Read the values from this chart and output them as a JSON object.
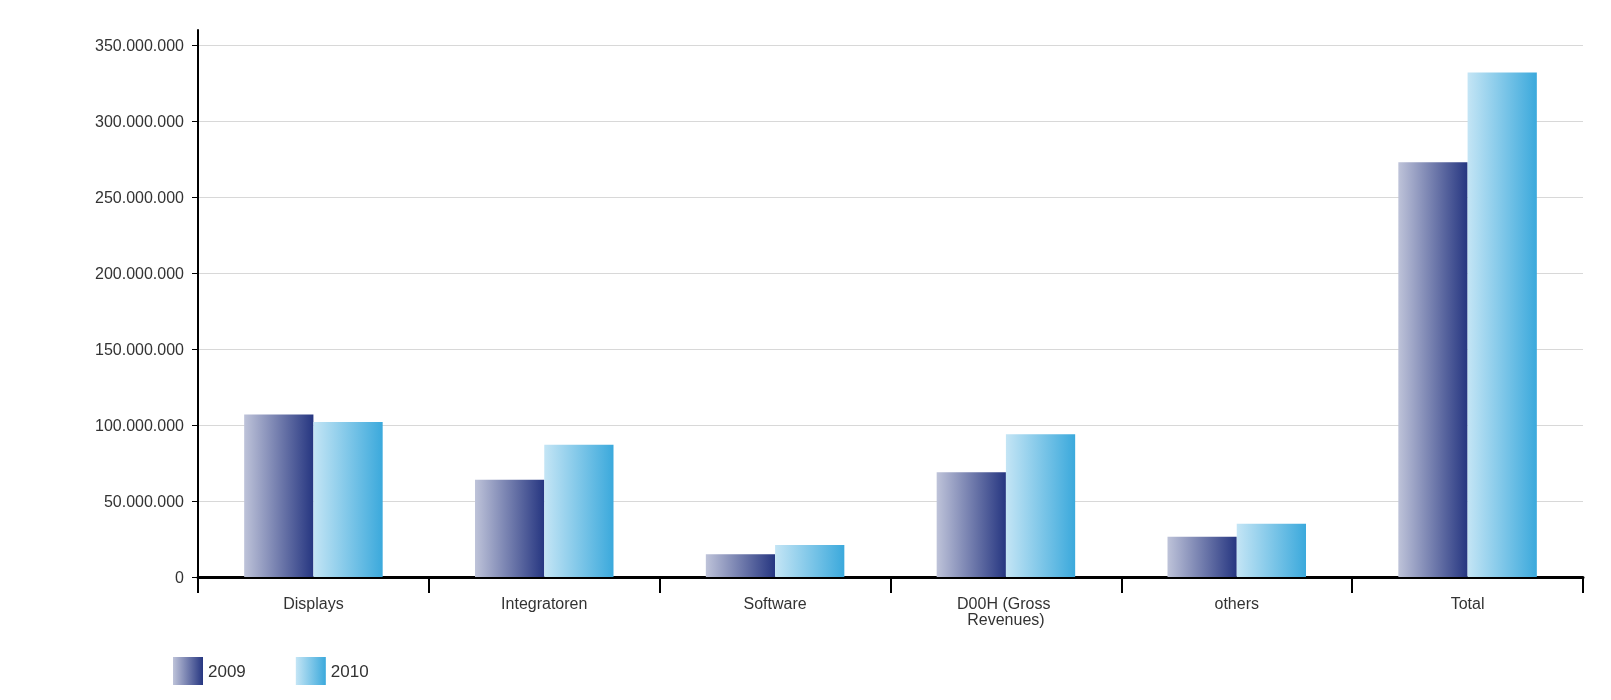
{
  "chart_data": {
    "type": "bar",
    "categories": [
      "Displays",
      "Integratoren",
      "Software",
      "D00H (Gross Revenues)",
      "others",
      "Total"
    ],
    "series": [
      {
        "name": "2009",
        "color": "#263681",
        "values": [
          107000000,
          64000000,
          15000000,
          69000000,
          26500000,
          273000000
        ]
      },
      {
        "name": "2010",
        "color": "#3ba9dc",
        "values": [
          102000000,
          87000000,
          21000000,
          94000000,
          35000000,
          332000000
        ]
      }
    ],
    "ylim": [
      0,
      360000000
    ],
    "yticks": [
      {
        "value": 0,
        "label": "0"
      },
      {
        "value": 50000000,
        "label": "50.000.000"
      },
      {
        "value": 100000000,
        "label": "100.000.000"
      },
      {
        "value": 150000000,
        "label": "150.000.000"
      },
      {
        "value": 200000000,
        "label": "200.000.000"
      },
      {
        "value": 250000000,
        "label": "250.000.000"
      },
      {
        "value": 300000000,
        "label": "300.000.000"
      },
      {
        "value": 350000000,
        "label": "350.000.000"
      }
    ],
    "grid": "y",
    "legend": "bottom left"
  }
}
